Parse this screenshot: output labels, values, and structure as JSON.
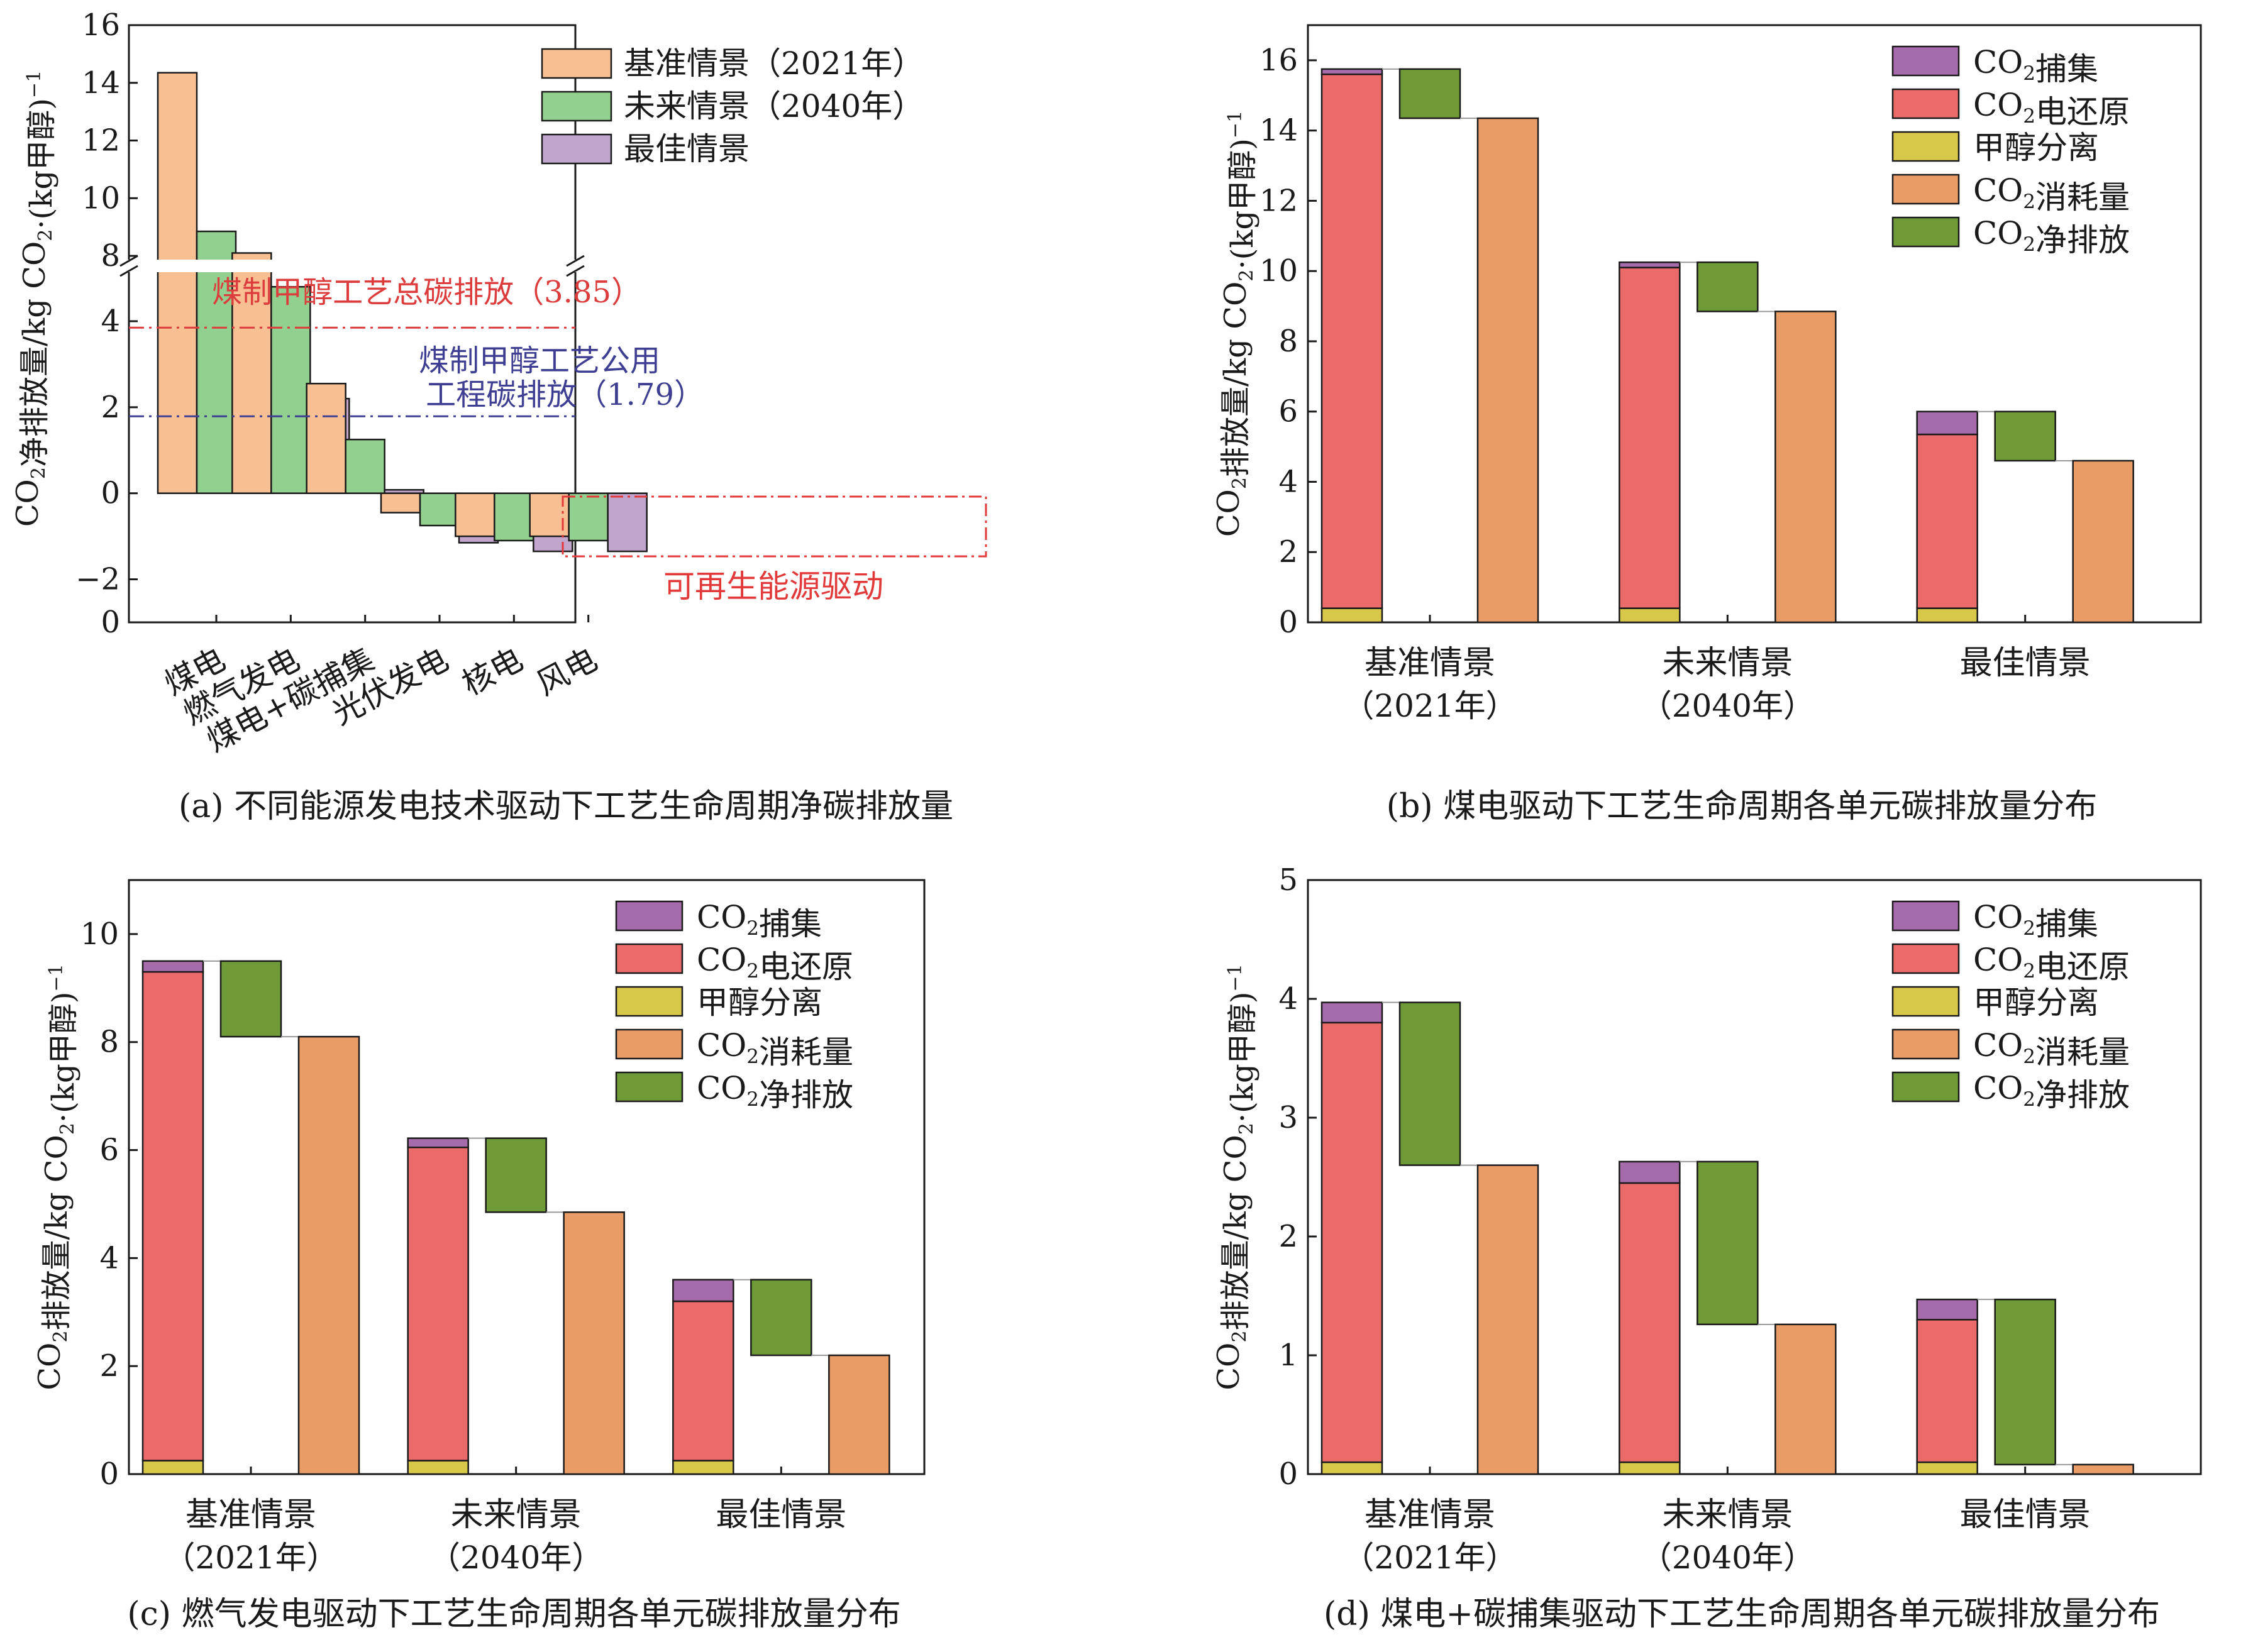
{
  "colors": {
    "baseline": "#F8BF93",
    "future": "#91D08F",
    "best": "#C2A5CC",
    "capture": "#A66BAB",
    "reduction": "#EB6B6A",
    "separation": "#D8C84A",
    "consumption": "#EA9C66",
    "net": "#6F9A38",
    "coal_line": "#DD3C3C",
    "utility_line": "#3E3E92",
    "renewable_box": "#E23A3A"
  },
  "chart_data": [
    {
      "id": "a",
      "type": "bar",
      "caption": "(a) 不同能源发电技术驱动下工艺生命周期净碳排放量",
      "ylabel": "CO2净排放量/kg CO2·(kg甲醇)−1",
      "ylim_upper": [
        7.5,
        16
      ],
      "ylim_lower": [
        -3,
        5.3
      ],
      "yticks_upper": [
        8,
        10,
        12,
        14,
        16
      ],
      "yticks_lower": [
        -2,
        0,
        2,
        4
      ],
      "categories": [
        "煤电",
        "燃气发电",
        "煤电+碳捕集",
        "光伏发电",
        "核电",
        "风电"
      ],
      "series": [
        {
          "name": "基准情景（2021年）",
          "values": [
            14.35,
            8.1,
            2.55,
            -0.45,
            -1.0,
            -1.0
          ]
        },
        {
          "name": "未来情景（2040年）",
          "values": [
            8.85,
            4.8,
            1.25,
            -0.75,
            -1.1,
            -1.1
          ]
        },
        {
          "name": "最佳情景",
          "values": [
            4.6,
            2.2,
            0.08,
            -1.15,
            -1.35,
            -1.35
          ]
        }
      ],
      "reference_lines": [
        {
          "label": "煤制甲醇工艺总碳排放（3.85）",
          "value": 3.85
        },
        {
          "label_lines": [
            "煤制甲醇工艺公用",
            "工程碳排放（1.79）"
          ],
          "value": 1.79
        }
      ],
      "annotation": "可再生能源驱动",
      "legend": "top-right"
    },
    {
      "id": "b",
      "type": "bar",
      "caption": "(b) 煤电驱动下工艺生命周期各单元碳排放量分布",
      "ylabel": "CO2排放量/kg CO2·(kg甲醇)−1",
      "ylim": [
        0,
        17
      ],
      "yticks": [
        0,
        2,
        4,
        6,
        8,
        10,
        12,
        14,
        16
      ],
      "categories": [
        [
          "基准情景",
          "（2021年）"
        ],
        [
          "未来情景",
          "（2040年）"
        ],
        [
          "最佳情景",
          ""
        ]
      ],
      "separation": [
        0.4,
        0.4,
        0.4
      ],
      "reduction_top": [
        15.6,
        10.1,
        5.35
      ],
      "capture_top": [
        15.75,
        10.25,
        6.0
      ],
      "consumption": [
        14.35,
        8.85,
        4.6
      ],
      "legend": "top-right"
    },
    {
      "id": "c",
      "type": "bar",
      "caption": "(c) 燃气发电驱动下工艺生命周期各单元碳排放量分布",
      "ylabel": "CO2排放量/kg CO2·(kg甲醇)−1",
      "ylim": [
        0,
        11
      ],
      "yticks": [
        0,
        2,
        4,
        6,
        8,
        10
      ],
      "categories": [
        [
          "基准情景",
          "（2021年）"
        ],
        [
          "未来情景",
          "（2040年）"
        ],
        [
          "最佳情景",
          ""
        ]
      ],
      "separation": [
        0.25,
        0.25,
        0.25
      ],
      "reduction_top": [
        9.3,
        6.05,
        3.2
      ],
      "capture_top": [
        9.5,
        6.22,
        3.6
      ],
      "consumption": [
        8.1,
        4.85,
        2.2
      ],
      "legend": "top-right"
    },
    {
      "id": "d",
      "type": "bar",
      "caption": "(d) 煤电+碳捕集驱动下工艺生命周期各单元碳排放量分布",
      "ylabel": "CO2排放量/kg CO2·(kg甲醇)−1",
      "ylim": [
        0,
        5
      ],
      "yticks": [
        0,
        1,
        2,
        3,
        4,
        5
      ],
      "categories": [
        [
          "基准情景",
          "（2021年）"
        ],
        [
          "未来情景",
          "（2040年）"
        ],
        [
          "最佳情景",
          ""
        ]
      ],
      "separation": [
        0.1,
        0.1,
        0.1
      ],
      "reduction_top": [
        3.8,
        2.45,
        1.3
      ],
      "capture_top": [
        3.97,
        2.63,
        1.47
      ],
      "consumption": [
        2.6,
        1.26,
        0.08
      ],
      "legend": "top-right"
    }
  ],
  "unit_legend": [
    "CO2捕集",
    "CO2电还原",
    "甲醇分离",
    "CO2消耗量",
    "CO2净排放"
  ]
}
